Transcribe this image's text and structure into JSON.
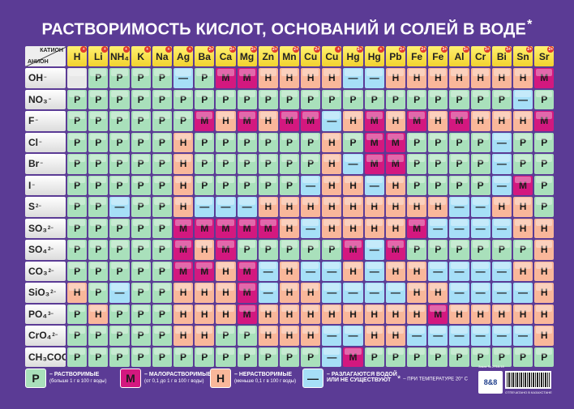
{
  "title": "РАСТВОРИМОСТЬ КИСЛОТ, ОСНОВАНИЙ И СОЛЕЙ В ВОДЕ",
  "title_mark": "*",
  "corner": {
    "cation_label": "КАТИОН",
    "anion_label": "АНИОН"
  },
  "cations": [
    {
      "symbol": "H",
      "charge": "+"
    },
    {
      "symbol": "Li",
      "charge": "+"
    },
    {
      "symbol": "NH4",
      "charge": "+"
    },
    {
      "symbol": "K",
      "charge": "+"
    },
    {
      "symbol": "Na",
      "charge": "+"
    },
    {
      "symbol": "Ag",
      "charge": "+"
    },
    {
      "symbol": "Ba",
      "charge": "2+"
    },
    {
      "symbol": "Ca",
      "charge": "2+"
    },
    {
      "symbol": "Mg",
      "charge": "2+"
    },
    {
      "symbol": "Zn",
      "charge": "2+"
    },
    {
      "symbol": "Mn",
      "charge": "2+"
    },
    {
      "symbol": "Cu",
      "charge": "2+"
    },
    {
      "symbol": "Cu",
      "charge": "+"
    },
    {
      "symbol": "Hg",
      "charge": "2+"
    },
    {
      "symbol": "Hg",
      "charge": "+"
    },
    {
      "symbol": "Pb",
      "charge": "2+"
    },
    {
      "symbol": "Fe",
      "charge": "2+"
    },
    {
      "symbol": "Fe",
      "charge": "3+"
    },
    {
      "symbol": "Al",
      "charge": "3+"
    },
    {
      "symbol": "Cr",
      "charge": "3+"
    },
    {
      "symbol": "Bi",
      "charge": "3+"
    },
    {
      "symbol": "Sn",
      "charge": "2+"
    },
    {
      "symbol": "Sr",
      "charge": "2+"
    }
  ],
  "anions": [
    {
      "symbol": "OH",
      "charge": "−",
      "row": "X P P P P D P M M N N N N D D N N N N N N N M"
    },
    {
      "symbol": "NO3",
      "charge": "−",
      "row": "P P P P P P P P P P P P P P P P P P P P P D P"
    },
    {
      "symbol": "F",
      "charge": "−",
      "row": "P P P P P P M N M N M M D N M N M N M N N N M"
    },
    {
      "symbol": "Cl",
      "charge": "−",
      "row": "P P P P P N P P P P P P N P M M P P P P D P P"
    },
    {
      "symbol": "Br",
      "charge": "−",
      "row": "P P P P P N P P P P P P N D M M P P P P D P P"
    },
    {
      "symbol": "I",
      "charge": "−",
      "row": "P P P P P N P P P P P D N N D N P P P P D M P"
    },
    {
      "symbol": "S",
      "charge": "2−",
      "row": "P P D P P N D D D N N N N N N N N N D D N N P"
    },
    {
      "symbol": "SO3",
      "charge": "2−",
      "row": "P P P P P M M M M M N D N N N N M D D D D N N"
    },
    {
      "symbol": "SO4",
      "charge": "2−",
      "row": "P P P P P M N M P P P P P M D M P P P P P P N"
    },
    {
      "symbol": "CO3",
      "charge": "2−",
      "row": "P P P P P M M N M D N D D N D N N D D D D N N"
    },
    {
      "symbol": "SiO3",
      "charge": "2−",
      "row": "N P D P P N N N M D N N D D D D N N D D D D N"
    },
    {
      "symbol": "PO4",
      "charge": "3−",
      "row": "P N P P P N N N M N N N N N N N N M N N N N N"
    },
    {
      "symbol": "CrO4",
      "charge": "2−",
      "row": "P P P P P N N P P N N N D D N N D D D D D D N"
    },
    {
      "symbol": "CH3COO",
      "charge": "",
      "row": "P P P P P P P P P P P P D M P P P P P P P P P"
    }
  ],
  "cell_letters": {
    "P": "Р",
    "M": "М",
    "N": "Н",
    "D": "—",
    "X": ""
  },
  "colors": {
    "background": "#5b3b95",
    "soluble": "#a9e0bb",
    "slightly": "#d3187f",
    "insoluble": "#f9b79a",
    "decompose": "#a6dff7"
  },
  "legend": {
    "soluble": {
      "letter": "Р",
      "label": "– РАСТВОРИМЫЕ",
      "note": "(больше 1 г в 100 г воды)"
    },
    "slightly": {
      "letter": "М",
      "label": "– МАЛОРАСТВОРИМЫЕ",
      "note": "(от 0,1 до 1 г в 100 г воды)"
    },
    "insoluble": {
      "letter": "Н",
      "label": "– НЕРАСТВОРИМЫЕ",
      "note": "(меньше 0,1 г в 100 г воды)"
    },
    "decompose": {
      "letter": "—",
      "label": "– РАЗЛАГАЮТСЯ ВОДОЙ",
      "label2": "ИЛИ НЕ СУЩЕСТВУЮТ"
    }
  },
  "footnote": {
    "mark": "*",
    "text": "– ПРИ ТЕМПЕРАТУРЕ 20° С"
  },
  "publisher": {
    "order": "Заказ № 2718-18",
    "logo": "8&8",
    "name": "ОТПЕЧАТАНО В КАЗАХСТАНЕ"
  }
}
